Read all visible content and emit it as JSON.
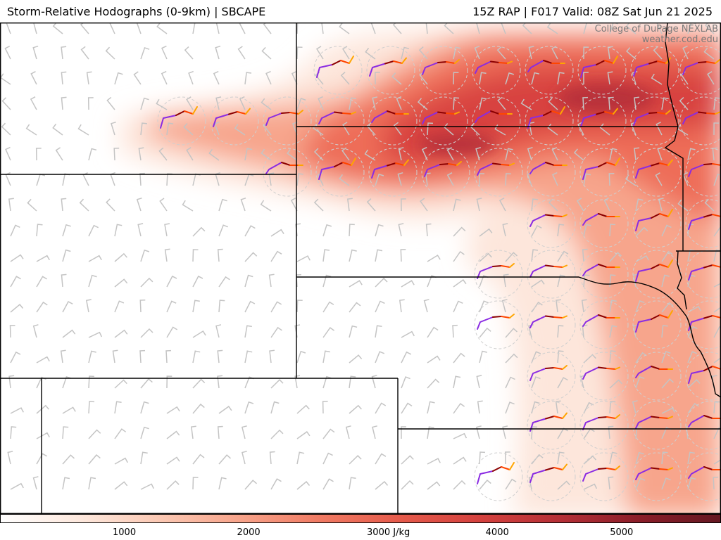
{
  "header": {
    "title_left": "Storm-Relative Hodographs (0-9km) | SBCAPE",
    "title_right": "15Z RAP | F017 Valid: 08Z Sat Jun 21 2025"
  },
  "credits": {
    "line1": "College of DuPage NEXLAB",
    "line2": "weather.cod.edu"
  },
  "colorbar": {
    "field": "SBCAPE",
    "range": [
      0,
      5800
    ],
    "ticks": [
      {
        "value": 1000,
        "label": "1000"
      },
      {
        "value": 2000,
        "label": "2000"
      },
      {
        "value": 3000,
        "label": "3000 J/kg"
      },
      {
        "value": 4000,
        "label": "4000"
      },
      {
        "value": 5000,
        "label": "5000"
      }
    ],
    "stops": [
      "#ffffff",
      "#fde8dd",
      "#fbc8b3",
      "#f7a38a",
      "#f07a63",
      "#e55a4b",
      "#d4413e",
      "#b52f36",
      "#8a1d28",
      "#641822"
    ]
  },
  "map": {
    "cape_colors": {
      "low": "#fde6db",
      "mid": "#f7a58c",
      "high": "#ee6d58",
      "core": "#d8433f",
      "max": "#b9303a"
    },
    "hodograph_colors": {
      "0-1km": "#8a2be2",
      "1-3km": "#8b0000",
      "3-6km": "#ff4500",
      "6-9km": "#ffa500"
    },
    "boundary_color": "#000000",
    "barb_color": "#c4c4c4"
  }
}
